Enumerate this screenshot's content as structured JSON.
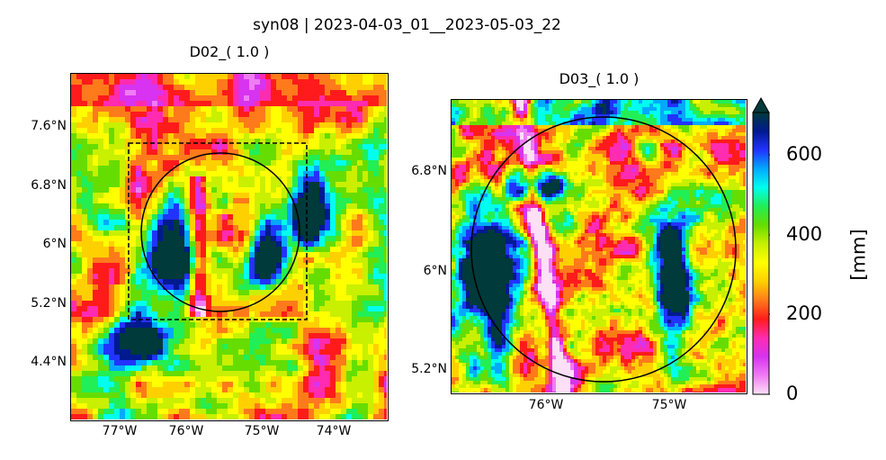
{
  "figure": {
    "suptitle": "syn08 | 2023-04-03_01__2023-05-03_22"
  },
  "panels": [
    {
      "title": "D02_( 1.0 )",
      "lat_labels": [
        "7.6°N",
        "6.8°N",
        "6°N",
        "5.2°N",
        "4.4°N"
      ],
      "lon_labels": [
        "77°W",
        "76°W",
        "75°W",
        "74°W"
      ],
      "overlays": [
        "dashed-box",
        "circle"
      ]
    },
    {
      "title": "D03_( 1.0 )",
      "lat_labels": [
        "6.8°N",
        "6°N",
        "5.2°N"
      ],
      "lon_labels": [
        "76°W",
        "75°W"
      ],
      "overlays": [
        "circle"
      ]
    }
  ],
  "colorbar": {
    "label": "[mm]",
    "ticks": [
      "0",
      "200",
      "400",
      "600"
    ],
    "range": [
      0,
      700
    ],
    "extend": "max",
    "colors": [
      "#fde0f5",
      "#f07cf4",
      "#d733f0",
      "#ff2bb0",
      "#ff1b1b",
      "#ff7a1a",
      "#ffd000",
      "#ffff00",
      "#c8f000",
      "#66dd00",
      "#22ee55",
      "#00ffee",
      "#00aaff",
      "#2233ff",
      "#001a90",
      "#003a3a"
    ]
  }
}
